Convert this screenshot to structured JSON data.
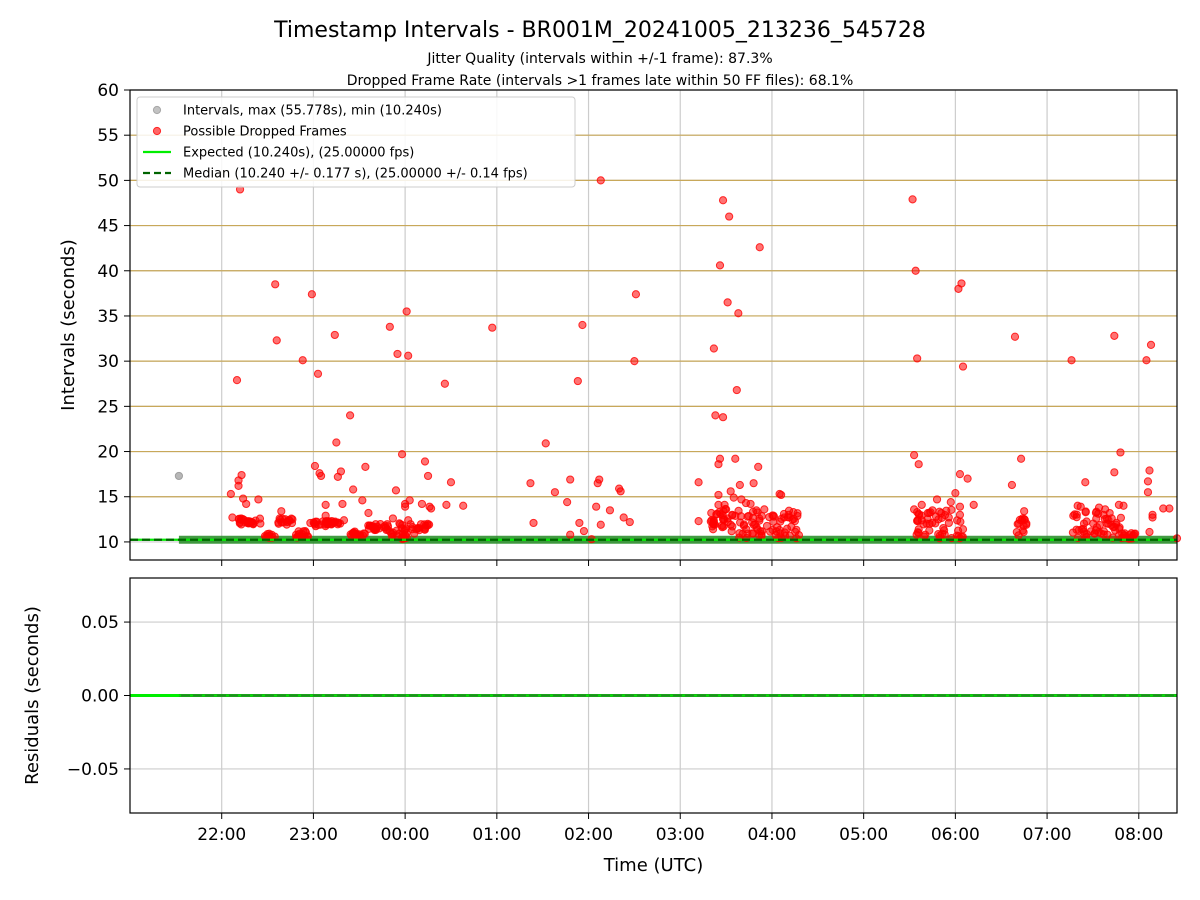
{
  "title": "Timestamp Intervals - BR001M_20241005_213236_545728",
  "subtitle_1": "Jitter Quality (intervals within +/-1 frame): 87.3%",
  "subtitle_2": "Dropped Frame Rate (intervals >1 frames late within 50 FF files): 68.1%",
  "colors": {
    "intervals": "#999999",
    "dropped": "#ff0000",
    "expected": "#00ee00",
    "median": "#006400",
    "hline": "#c8a85a",
    "grid": "#cccccc",
    "ribbon": "#228b22"
  },
  "chart_data": [
    {
      "type": "scatter",
      "ylabel": "Intervals (seconds)",
      "ylim": [
        8,
        60
      ],
      "yticks": [
        10,
        15,
        20,
        25,
        30,
        35,
        40,
        45,
        50,
        55,
        60
      ],
      "xlim": [
        "21:00",
        "08:25"
      ],
      "xticks": [
        "22:00",
        "23:00",
        "00:00",
        "01:00",
        "02:00",
        "03:00",
        "04:00",
        "05:00",
        "06:00",
        "07:00",
        "08:00"
      ],
      "grid": true,
      "legend_position": "upper-left",
      "legend": [
        {
          "label": "Intervals, max (55.778s), min (10.240s)",
          "marker": "dot",
          "color": "#999999"
        },
        {
          "label": "Possible Dropped Frames",
          "marker": "dot",
          "color": "#ff0000"
        },
        {
          "label": "Expected (10.240s), (25.00000 fps)",
          "marker": "line",
          "color": "#00ee00"
        },
        {
          "label": "Median (10.240 +/- 0.177 s), (25.00000 +/- 0.14 fps)",
          "marker": "dashed",
          "color": "#006400"
        }
      ],
      "expected_value": 10.24,
      "median_value": 10.24,
      "series": [
        {
          "name": "Intervals, max (55.778s), min (10.240s)",
          "points": [
            [
              "21:32",
              17.3
            ]
          ]
        },
        {
          "name": "Possible Dropped Frames",
          "points": [
            [
              "22:06",
              15.3
            ],
            [
              "22:07",
              12.7
            ],
            [
              "22:10",
              27.9
            ],
            [
              "22:11",
              16.2
            ],
            [
              "22:11",
              16.8
            ],
            [
              "22:12",
              49.0
            ],
            [
              "22:13",
              17.4
            ],
            [
              "22:14",
              14.8
            ],
            [
              "22:16",
              14.2
            ],
            [
              "22:24",
              14.7
            ],
            [
              "22:35",
              38.5
            ],
            [
              "22:36",
              32.3
            ],
            [
              "22:39",
              13.4
            ],
            [
              "22:53",
              30.1
            ],
            [
              "22:58",
              12.1
            ],
            [
              "22:59",
              37.4
            ],
            [
              "23:01",
              18.4
            ],
            [
              "23:03",
              28.6
            ],
            [
              "23:04",
              17.6
            ],
            [
              "23:05",
              17.3
            ],
            [
              "23:08",
              14.1
            ],
            [
              "23:08",
              12.9
            ],
            [
              "23:12",
              12.3
            ],
            [
              "23:14",
              32.9
            ],
            [
              "23:15",
              21.0
            ],
            [
              "23:16",
              17.2
            ],
            [
              "23:18",
              17.8
            ],
            [
              "23:19",
              14.2
            ],
            [
              "23:20",
              12.4
            ],
            [
              "23:24",
              24.0
            ],
            [
              "23:26",
              15.8
            ],
            [
              "23:32",
              14.6
            ],
            [
              "23:34",
              18.3
            ],
            [
              "23:36",
              13.2
            ],
            [
              "23:50",
              33.8
            ],
            [
              "23:52",
              12.6
            ],
            [
              "23:54",
              15.7
            ],
            [
              "23:55",
              30.8
            ],
            [
              "23:58",
              19.7
            ],
            [
              "00:00",
              14.2
            ],
            [
              "00:00",
              13.9
            ],
            [
              "00:01",
              35.5
            ],
            [
              "00:02",
              30.6
            ],
            [
              "00:02",
              12.4
            ],
            [
              "00:03",
              14.6
            ],
            [
              "00:11",
              14.2
            ],
            [
              "00:13",
              18.9
            ],
            [
              "00:15",
              17.3
            ],
            [
              "00:16",
              13.9
            ],
            [
              "00:17",
              13.7
            ],
            [
              "00:26",
              27.5
            ],
            [
              "00:27",
              14.1
            ],
            [
              "00:30",
              16.6
            ],
            [
              "00:38",
              14.0
            ],
            [
              "00:57",
              33.7
            ],
            [
              "01:22",
              16.5
            ],
            [
              "01:24",
              12.1
            ],
            [
              "01:32",
              20.9
            ],
            [
              "01:38",
              15.5
            ],
            [
              "01:46",
              14.4
            ],
            [
              "01:48",
              16.9
            ],
            [
              "01:48",
              10.8
            ],
            [
              "01:53",
              27.8
            ],
            [
              "01:54",
              12.1
            ],
            [
              "01:56",
              34.0
            ],
            [
              "01:57",
              11.2
            ],
            [
              "02:02",
              10.3
            ],
            [
              "02:05",
              13.9
            ],
            [
              "02:06",
              16.5
            ],
            [
              "02:07",
              16.9
            ],
            [
              "02:08",
              50.0
            ],
            [
              "02:08",
              11.9
            ],
            [
              "02:14",
              13.5
            ],
            [
              "02:20",
              15.9
            ],
            [
              "02:21",
              15.6
            ],
            [
              "02:23",
              12.7
            ],
            [
              "02:27",
              12.2
            ],
            [
              "02:30",
              30.0
            ],
            [
              "02:31",
              37.4
            ],
            [
              "03:12",
              16.6
            ],
            [
              "03:12",
              12.3
            ],
            [
              "03:22",
              31.4
            ],
            [
              "03:23",
              24.0
            ],
            [
              "03:24",
              13.1
            ],
            [
              "03:25",
              14.1
            ],
            [
              "03:25",
              18.6
            ],
            [
              "03:25",
              15.2
            ],
            [
              "03:26",
              19.2
            ],
            [
              "03:26",
              40.6
            ],
            [
              "03:28",
              23.8
            ],
            [
              "03:28",
              47.8
            ],
            [
              "03:29",
              14.1
            ],
            [
              "03:30",
              13.6
            ],
            [
              "03:31",
              36.5
            ],
            [
              "03:31",
              12.6
            ],
            [
              "03:32",
              46.0
            ],
            [
              "03:33",
              15.6
            ],
            [
              "03:34",
              13.0
            ],
            [
              "03:35",
              14.9
            ],
            [
              "03:36",
              19.2
            ],
            [
              "03:37",
              26.8
            ],
            [
              "03:38",
              35.3
            ],
            [
              "03:39",
              16.3
            ],
            [
              "03:40",
              14.7
            ],
            [
              "03:43",
              14.3
            ],
            [
              "03:44",
              12.8
            ],
            [
              "03:46",
              14.2
            ],
            [
              "03:48",
              16.5
            ],
            [
              "03:51",
              18.3
            ],
            [
              "03:52",
              42.6
            ],
            [
              "03:55",
              13.6
            ],
            [
              "04:01",
              12.9
            ],
            [
              "04:05",
              15.3
            ],
            [
              "04:06",
              15.2
            ],
            [
              "04:08",
              12.7
            ],
            [
              "04:11",
              13.0
            ],
            [
              "04:14",
              13.3
            ],
            [
              "04:15",
              12.3
            ],
            [
              "05:32",
              47.9
            ],
            [
              "05:33",
              19.6
            ],
            [
              "05:33",
              13.6
            ],
            [
              "05:34",
              40.0
            ],
            [
              "05:35",
              13.3
            ],
            [
              "05:35",
              30.3
            ],
            [
              "05:36",
              18.6
            ],
            [
              "05:38",
              14.1
            ],
            [
              "05:42",
              13.2
            ],
            [
              "05:45",
              13.5
            ],
            [
              "05:48",
              14.7
            ],
            [
              "05:57",
              14.4
            ],
            [
              "06:00",
              15.4
            ],
            [
              "06:02",
              38.0
            ],
            [
              "06:03",
              13.9
            ],
            [
              "06:03",
              17.5
            ],
            [
              "06:03",
              13.0
            ],
            [
              "06:04",
              38.6
            ],
            [
              "06:05",
              29.4
            ],
            [
              "06:05",
              11.4
            ],
            [
              "06:08",
              17.0
            ],
            [
              "06:12",
              14.1
            ],
            [
              "06:37",
              16.3
            ],
            [
              "06:39",
              32.7
            ],
            [
              "06:43",
              19.2
            ],
            [
              "06:44",
              12.6
            ],
            [
              "06:45",
              13.4
            ],
            [
              "07:16",
              30.1
            ],
            [
              "07:20",
              14.0
            ],
            [
              "07:22",
              13.9
            ],
            [
              "07:25",
              16.6
            ],
            [
              "07:34",
              13.8
            ],
            [
              "07:37",
              13.0
            ],
            [
              "07:38",
              13.6
            ],
            [
              "07:44",
              32.8
            ],
            [
              "07:44",
              17.7
            ],
            [
              "07:47",
              14.1
            ],
            [
              "07:48",
              19.9
            ],
            [
              "07:50",
              14.0
            ],
            [
              "08:05",
              30.1
            ],
            [
              "08:06",
              16.7
            ],
            [
              "08:06",
              15.5
            ],
            [
              "08:07",
              11.1
            ],
            [
              "08:07",
              17.9
            ],
            [
              "08:08",
              31.8
            ],
            [
              "08:09",
              13.0
            ],
            [
              "08:09",
              12.7
            ],
            [
              "08:16",
              13.7
            ],
            [
              "08:20",
              13.7
            ],
            [
              "08:25",
              10.4
            ]
          ]
        }
      ]
    },
    {
      "type": "line",
      "xlabel": "Time (UTC)",
      "ylabel": "Residuals (seconds)",
      "ylim": [
        -0.08,
        0.08
      ],
      "yticks": [
        "0.05",
        "0.00",
        "−0.05"
      ],
      "ytick_values": [
        0.05,
        0.0,
        -0.05
      ],
      "xticks": [
        "22:00",
        "23:00",
        "00:00",
        "01:00",
        "02:00",
        "03:00",
        "04:00",
        "05:00",
        "06:00",
        "07:00",
        "08:00"
      ],
      "grid": true,
      "residual_value": 0.0
    }
  ]
}
